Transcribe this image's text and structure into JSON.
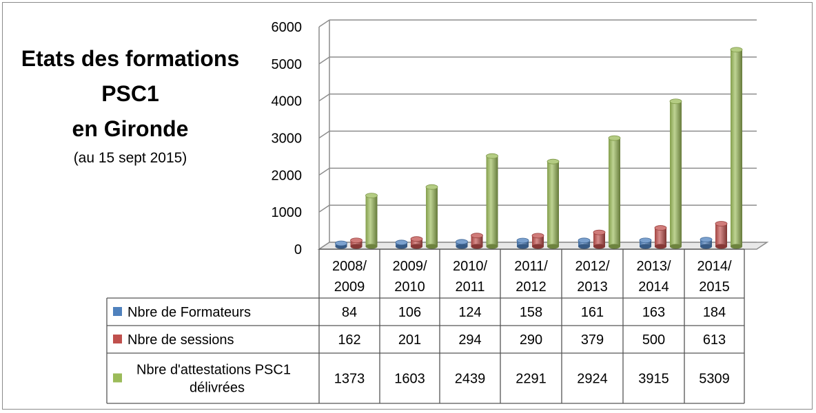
{
  "title": {
    "line1": "Etats des formations",
    "line2": "PSC1",
    "line3": "en Gironde",
    "subtitle": "(au 15 sept 2015)"
  },
  "chart_data": {
    "type": "bar",
    "categories": [
      [
        "2008/",
        "2009"
      ],
      [
        "2009/",
        "2010"
      ],
      [
        "2010/",
        "2011"
      ],
      [
        "2011/",
        "2012"
      ],
      [
        "2012/",
        "2013"
      ],
      [
        "2013/",
        "2014"
      ],
      [
        "2014/",
        "2015"
      ]
    ],
    "series": [
      {
        "name": "Nbre de Formateurs",
        "values": [
          84,
          106,
          124,
          158,
          161,
          163,
          184
        ],
        "color": "#4f81bd"
      },
      {
        "name": "Nbre de sessions",
        "values": [
          162,
          201,
          294,
          290,
          379,
          500,
          613
        ],
        "color": "#c0504d"
      },
      {
        "name_lines": [
          "Nbre d'attestations PSC1",
          "délivrées"
        ],
        "values": [
          1373,
          1603,
          2439,
          2291,
          2924,
          3915,
          5309
        ],
        "color": "#9bbb59"
      }
    ],
    "ylim": [
      0,
      6000
    ],
    "yticks": [
      0,
      1000,
      2000,
      3000,
      4000,
      5000,
      6000
    ],
    "grid": true,
    "legend": "data-table"
  }
}
